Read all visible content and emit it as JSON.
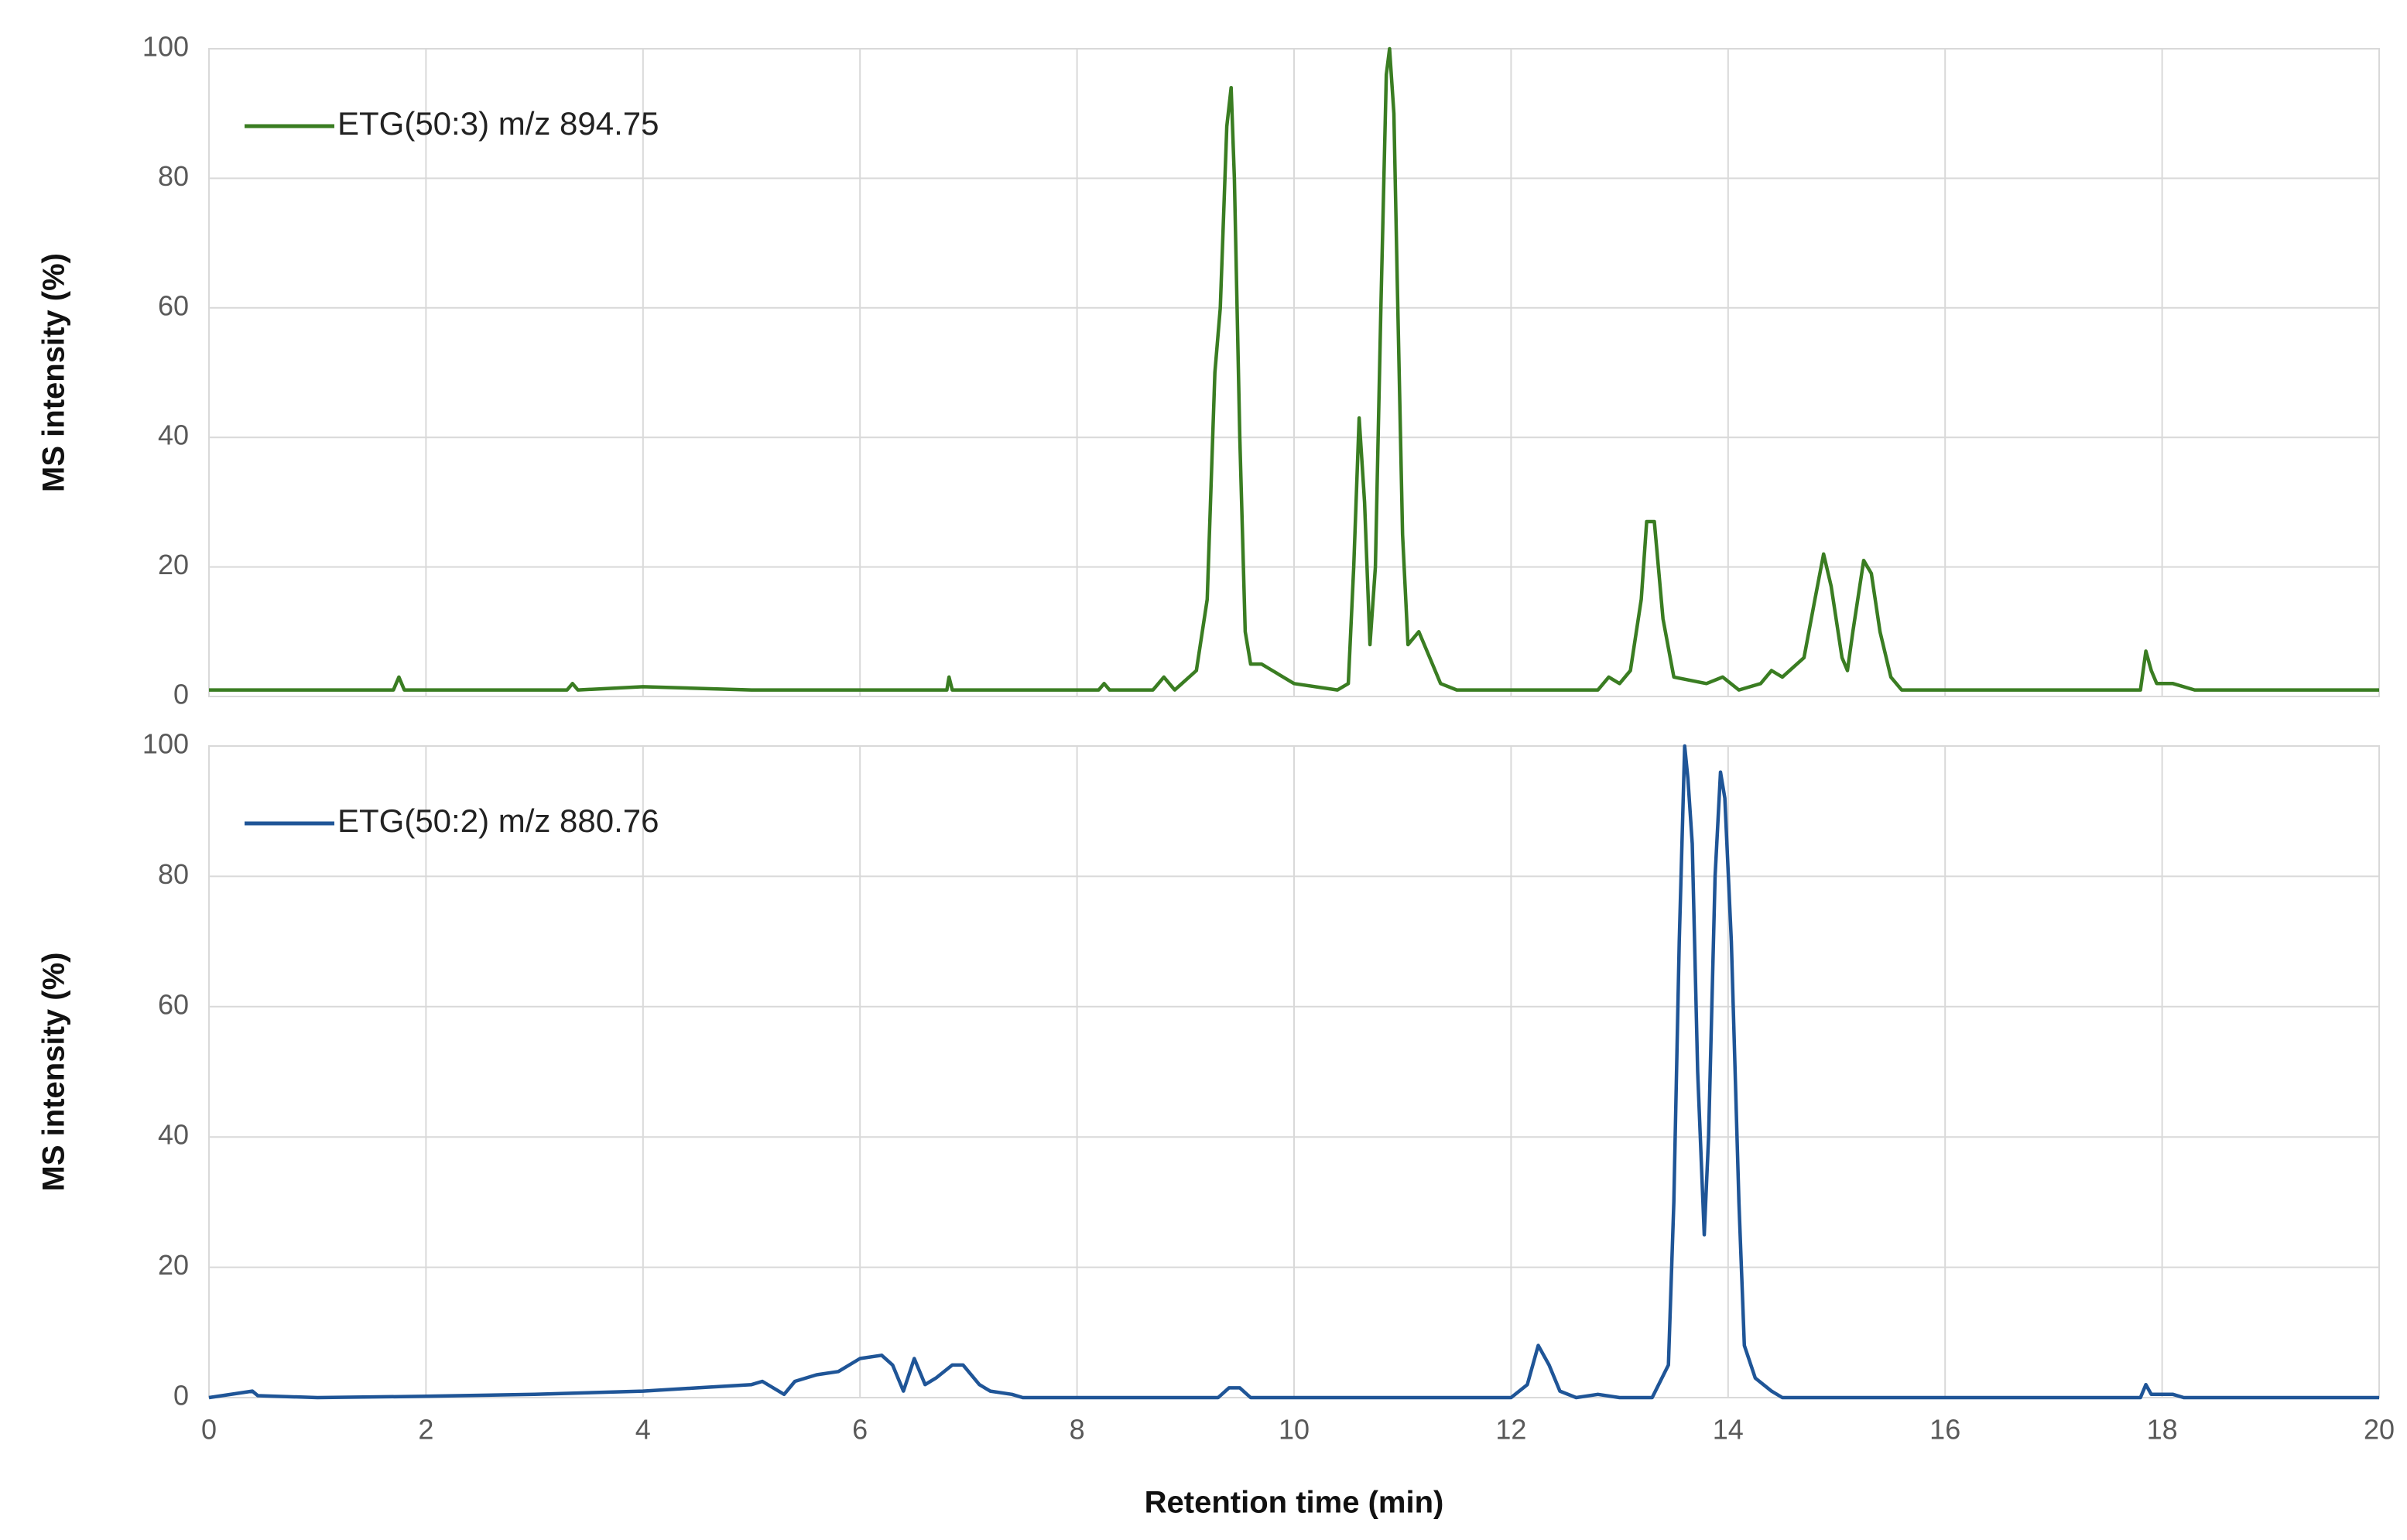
{
  "chart_data": [
    {
      "type": "line",
      "ylabel": "MS intensity (%)",
      "x": [
        0,
        1.7,
        1.75,
        1.8,
        3.3,
        3.35,
        3.4,
        4,
        5,
        6.8,
        6.82,
        6.85,
        8.2,
        8.25,
        8.3,
        8.7,
        8.8,
        8.9,
        9.1,
        9.2,
        9.27,
        9.32,
        9.38,
        9.42,
        9.45,
        9.5,
        9.55,
        9.6,
        9.7,
        9.8,
        10.0,
        10.4,
        10.5,
        10.55,
        10.6,
        10.65,
        10.7,
        10.75,
        10.8,
        10.85,
        10.88,
        10.92,
        10.95,
        11.0,
        11.05,
        11.15,
        11.25,
        11.35,
        11.5,
        12.8,
        12.9,
        13.0,
        13.1,
        13.2,
        13.25,
        13.32,
        13.4,
        13.5,
        13.8,
        13.95,
        14.1,
        14.3,
        14.4,
        14.5,
        14.7,
        14.8,
        14.88,
        14.95,
        15.05,
        15.1,
        15.15,
        15.25,
        15.32,
        15.4,
        15.5,
        15.6,
        17.8,
        17.85,
        17.9,
        17.95,
        18.1,
        18.3,
        20
      ],
      "series": [
        {
          "name": "ETG(50:3) m/z 894.75",
          "color": "#3a7d22",
          "values": [
            1,
            1,
            3,
            1,
            1,
            2,
            1,
            1.5,
            1,
            1,
            3,
            1,
            1,
            2,
            1,
            1,
            3,
            1,
            4,
            15,
            50,
            60,
            88,
            94,
            80,
            40,
            10,
            5,
            5,
            4,
            2,
            1,
            2,
            20,
            43,
            30,
            8,
            20,
            60,
            96,
            100,
            90,
            65,
            25,
            8,
            10,
            6,
            2,
            1,
            1,
            3,
            2,
            4,
            15,
            27,
            27,
            12,
            3,
            2,
            3,
            1,
            2,
            4,
            3,
            6,
            15,
            22,
            17,
            6,
            4,
            10,
            21,
            19,
            10,
            3,
            1,
            1,
            7,
            4,
            2,
            2,
            1,
            1
          ]
        }
      ],
      "xlim": [
        0,
        20
      ],
      "xticks": [
        0,
        2,
        4,
        6,
        8,
        10,
        12,
        14,
        16,
        18,
        20
      ],
      "ylim": [
        0,
        100
      ],
      "yticks": [
        0,
        20,
        40,
        60,
        80,
        100
      ],
      "grid": true,
      "legend": "upper left"
    },
    {
      "type": "line",
      "ylabel": "MS intensity (%)",
      "xlabel": "Retention time (min)",
      "x": [
        0,
        0.4,
        0.45,
        1,
        2,
        3,
        4,
        4.5,
        5,
        5.1,
        5.3,
        5.4,
        5.6,
        5.8,
        6,
        6.2,
        6.3,
        6.4,
        6.5,
        6.6,
        6.7,
        6.85,
        6.95,
        7.1,
        7.2,
        7.4,
        7.5,
        9.3,
        9.4,
        9.5,
        9.6,
        12.0,
        12.15,
        12.25,
        12.35,
        12.45,
        12.6,
        12.8,
        13.0,
        13.3,
        13.45,
        13.5,
        13.55,
        13.6,
        13.63,
        13.67,
        13.72,
        13.78,
        13.82,
        13.88,
        13.93,
        13.97,
        14.03,
        14.1,
        14.15,
        14.25,
        14.4,
        14.5,
        17.8,
        17.85,
        17.9,
        18.1,
        18.2,
        20
      ],
      "series": [
        {
          "name": "ETG(50:2) m/z 880.76",
          "color": "#1f5597",
          "values": [
            0,
            1,
            0.3,
            0,
            0.2,
            0.5,
            1,
            1.5,
            2,
            2.5,
            0.5,
            2.5,
            3.5,
            4,
            6,
            6.5,
            5,
            1,
            6,
            2,
            3,
            5,
            5,
            2,
            1,
            0.5,
            0,
            0,
            1.5,
            1.5,
            0,
            0,
            2,
            8,
            5,
            1,
            0,
            0.5,
            0,
            0,
            5,
            30,
            70,
            100,
            95,
            85,
            50,
            25,
            40,
            80,
            96,
            92,
            70,
            30,
            8,
            3,
            1,
            0,
            0,
            2,
            0.5,
            0.5,
            0,
            0
          ]
        }
      ],
      "xlim": [
        0,
        20
      ],
      "xticks": [
        0,
        2,
        4,
        6,
        8,
        10,
        12,
        14,
        16,
        18,
        20
      ],
      "ylim": [
        0,
        100
      ],
      "yticks": [
        0,
        20,
        40,
        60,
        80,
        100
      ],
      "grid": true,
      "legend": "upper left"
    }
  ]
}
